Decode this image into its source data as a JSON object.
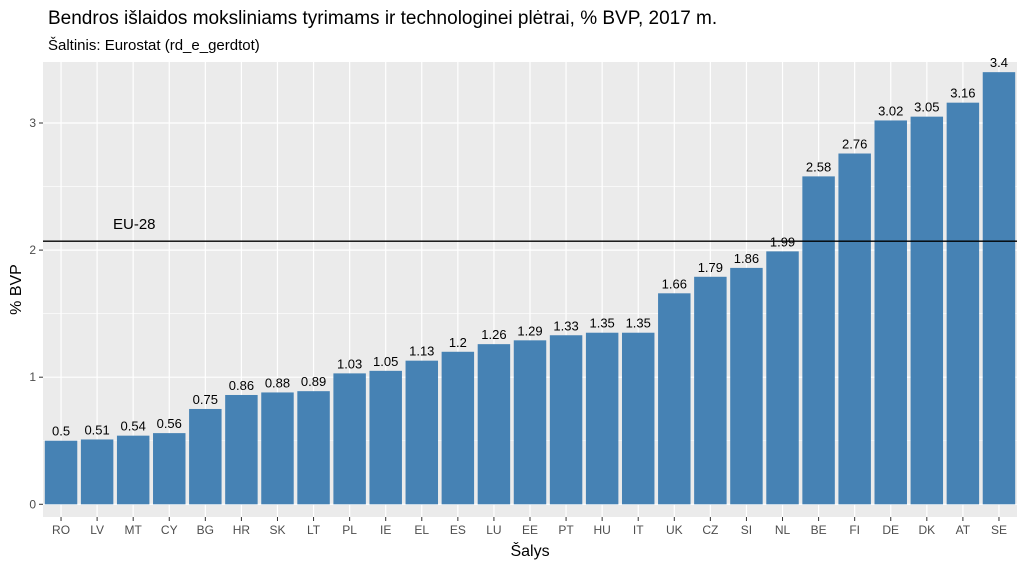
{
  "chart_data": {
    "type": "bar",
    "title": "Bendros išlaidos moksliniams tyrimams ir technologinei plėtrai, % BVP,  2017 m.",
    "subtitle": "Šaltinis: Eurostat (rd_e_gerdtot)",
    "xlabel": "Šalys",
    "ylabel": "% BVP",
    "categories": [
      "RO",
      "LV",
      "MT",
      "CY",
      "BG",
      "HR",
      "SK",
      "LT",
      "PL",
      "IE",
      "EL",
      "ES",
      "LU",
      "EE",
      "PT",
      "HU",
      "IT",
      "UK",
      "CZ",
      "SI",
      "NL",
      "BE",
      "FI",
      "DE",
      "DK",
      "AT",
      "SE"
    ],
    "values": [
      0.5,
      0.51,
      0.54,
      0.56,
      0.75,
      0.86,
      0.88,
      0.89,
      1.03,
      1.05,
      1.13,
      1.2,
      1.26,
      1.29,
      1.33,
      1.35,
      1.35,
      1.66,
      1.79,
      1.86,
      1.99,
      2.58,
      2.76,
      3.02,
      3.05,
      3.16,
      3.4
    ],
    "value_labels": [
      "0.5",
      "0.51",
      "0.54",
      "0.56",
      "0.75",
      "0.86",
      "0.88",
      "0.89",
      "1.03",
      "1.05",
      "1.13",
      "1.2",
      "1.26",
      "1.29",
      "1.33",
      "1.35",
      "1.35",
      "1.66",
      "1.79",
      "1.86",
      "1.99",
      "2.58",
      "2.76",
      "3.02",
      "3.05",
      "3.16",
      "3.4"
    ],
    "ylim": [
      0,
      3.5
    ],
    "yticks": [
      0,
      1,
      2,
      3
    ],
    "reference_line": {
      "label": "EU-28",
      "value": 2.07
    },
    "grid": true,
    "legend": "none",
    "colors": {
      "bar": "#4682b4",
      "panel": "#ebebeb",
      "grid_major": "#ffffff",
      "reference_line": "#000000"
    }
  }
}
